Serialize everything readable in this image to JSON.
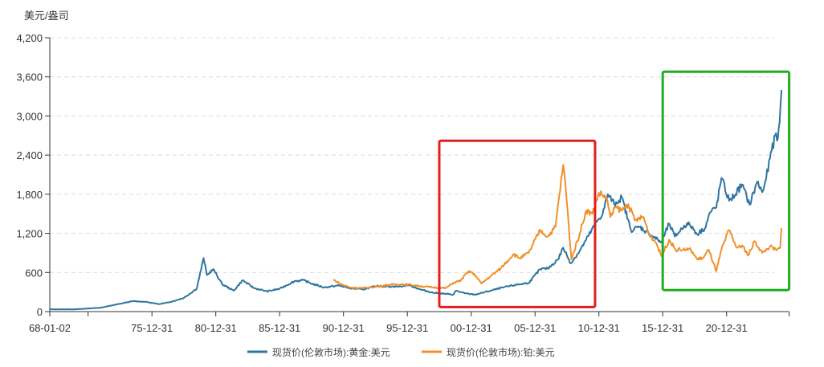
{
  "chart_data": {
    "type": "line",
    "title": "",
    "ylabel": "美元/盎司",
    "xlabel": "",
    "ylim": [
      0,
      4200
    ],
    "yticks": [
      0,
      600,
      1200,
      1800,
      2400,
      3000,
      3600,
      4200
    ],
    "ytick_labels": [
      "0",
      "600",
      "1,200",
      "1,800",
      "2,400",
      "3,000",
      "3,600",
      "4,200"
    ],
    "xlim_years": [
      1968.0,
      2025.9
    ],
    "xticks": [
      {
        "year": 1968.0,
        "label": "68-01-02"
      },
      {
        "year": 1971.0,
        "label": ""
      },
      {
        "year": 1976.0,
        "label": "75-12-31"
      },
      {
        "year": 1981.0,
        "label": "80-12-31"
      },
      {
        "year": 1986.0,
        "label": "85-12-31"
      },
      {
        "year": 1991.0,
        "label": "90-12-31"
      },
      {
        "year": 1996.0,
        "label": "95-12-31"
      },
      {
        "year": 2001.0,
        "label": "00-12-31"
      },
      {
        "year": 2006.0,
        "label": "05-12-31"
      },
      {
        "year": 2011.0,
        "label": "10-12-31"
      },
      {
        "year": 2016.0,
        "label": "15-12-31"
      },
      {
        "year": 2021.0,
        "label": "20-12-31"
      },
      {
        "year": 2025.9,
        "label": ""
      }
    ],
    "grid": "horizontal-dashed",
    "legend_position": "bottom-center",
    "series": [
      {
        "name": "现货价(伦敦市场):黄金:美元",
        "color": "#2e75a0",
        "points": [
          [
            1968,
            35
          ],
          [
            1970,
            35
          ],
          [
            1972,
            60
          ],
          [
            1973.5,
            120
          ],
          [
            1974.5,
            160
          ],
          [
            1975.5,
            150
          ],
          [
            1976.5,
            115
          ],
          [
            1977.5,
            150
          ],
          [
            1978.5,
            210
          ],
          [
            1979.5,
            350
          ],
          [
            1980.05,
            820
          ],
          [
            1980.3,
            560
          ],
          [
            1980.8,
            650
          ],
          [
            1981.5,
            420
          ],
          [
            1982.4,
            320
          ],
          [
            1983.1,
            480
          ],
          [
            1984,
            360
          ],
          [
            1985,
            310
          ],
          [
            1986,
            350
          ],
          [
            1987.2,
            470
          ],
          [
            1987.9,
            480
          ],
          [
            1988.5,
            430
          ],
          [
            1989.5,
            370
          ],
          [
            1990.6,
            400
          ],
          [
            1991.5,
            360
          ],
          [
            1992.5,
            340
          ],
          [
            1993.6,
            390
          ],
          [
            1994.5,
            385
          ],
          [
            1995.5,
            385
          ],
          [
            1996.1,
            410
          ],
          [
            1997,
            340
          ],
          [
            1998,
            290
          ],
          [
            1999.6,
            260
          ],
          [
            1999.8,
            320
          ],
          [
            2000.5,
            280
          ],
          [
            2001.3,
            260
          ],
          [
            2002.5,
            320
          ],
          [
            2003.5,
            370
          ],
          [
            2004.5,
            410
          ],
          [
            2005.5,
            440
          ],
          [
            2006.4,
            650
          ],
          [
            2007,
            660
          ],
          [
            2007.8,
            800
          ],
          [
            2008.2,
            980
          ],
          [
            2008.8,
            740
          ],
          [
            2009.5,
            930
          ],
          [
            2010,
            1100
          ],
          [
            2010.9,
            1400
          ],
          [
            2011.3,
            1500
          ],
          [
            2011.7,
            1800
          ],
          [
            2012.2,
            1650
          ],
          [
            2012.8,
            1750
          ],
          [
            2013.5,
            1250
          ],
          [
            2014.2,
            1300
          ],
          [
            2014.9,
            1200
          ],
          [
            2015.9,
            1060
          ],
          [
            2016.5,
            1350
          ],
          [
            2016.95,
            1150
          ],
          [
            2017.7,
            1320
          ],
          [
            2018.1,
            1340
          ],
          [
            2018.7,
            1190
          ],
          [
            2019.3,
            1280
          ],
          [
            2019.7,
            1520
          ],
          [
            2020.2,
            1600
          ],
          [
            2020.6,
            2050
          ],
          [
            2021.2,
            1700
          ],
          [
            2021.7,
            1800
          ],
          [
            2022.2,
            1950
          ],
          [
            2022.8,
            1640
          ],
          [
            2023.4,
            1990
          ],
          [
            2023.8,
            1830
          ],
          [
            2024.1,
            2040
          ],
          [
            2024.4,
            2350
          ],
          [
            2024.8,
            2700
          ],
          [
            2024.95,
            2620
          ],
          [
            2025.15,
            2900
          ],
          [
            2025.3,
            3400
          ]
        ]
      },
      {
        "name": "现货价(伦敦市场):铂:美元",
        "color": "#f0902a",
        "points": [
          [
            1990.2,
            490
          ],
          [
            1990.8,
            420
          ],
          [
            1991.5,
            370
          ],
          [
            1992.5,
            360
          ],
          [
            1993.5,
            380
          ],
          [
            1994.5,
            410
          ],
          [
            1995.5,
            420
          ],
          [
            1996.3,
            410
          ],
          [
            1997,
            390
          ],
          [
            1998,
            370
          ],
          [
            1999,
            360
          ],
          [
            1999.6,
            440
          ],
          [
            2000.2,
            480
          ],
          [
            2000.5,
            560
          ],
          [
            2000.9,
            620
          ],
          [
            2001.4,
            540
          ],
          [
            2001.8,
            430
          ],
          [
            2002.5,
            540
          ],
          [
            2003.3,
            660
          ],
          [
            2004.3,
            880
          ],
          [
            2004.8,
            820
          ],
          [
            2005.5,
            900
          ],
          [
            2006.4,
            1250
          ],
          [
            2007,
            1150
          ],
          [
            2007.6,
            1300
          ],
          [
            2008.2,
            2250
          ],
          [
            2008.4,
            1900
          ],
          [
            2008.85,
            800
          ],
          [
            2009.5,
            1200
          ],
          [
            2010,
            1550
          ],
          [
            2010.5,
            1500
          ],
          [
            2011,
            1820
          ],
          [
            2011.6,
            1750
          ],
          [
            2011.9,
            1450
          ],
          [
            2012.3,
            1600
          ],
          [
            2012.8,
            1550
          ],
          [
            2013.3,
            1650
          ],
          [
            2013.8,
            1400
          ],
          [
            2014.5,
            1450
          ],
          [
            2014.9,
            1200
          ],
          [
            2015.5,
            1050
          ],
          [
            2015.9,
            850
          ],
          [
            2016.5,
            1100
          ],
          [
            2017,
            950
          ],
          [
            2017.6,
            950
          ],
          [
            2018.2,
            950
          ],
          [
            2018.7,
            800
          ],
          [
            2019.2,
            830
          ],
          [
            2019.6,
            950
          ],
          [
            2020.2,
            620
          ],
          [
            2020.6,
            950
          ],
          [
            2021.2,
            1250
          ],
          [
            2021.8,
            980
          ],
          [
            2022.3,
            1000
          ],
          [
            2022.7,
            860
          ],
          [
            2023.2,
            1080
          ],
          [
            2023.8,
            900
          ],
          [
            2024.4,
            1000
          ],
          [
            2024.9,
            940
          ],
          [
            2025.2,
            980
          ],
          [
            2025.3,
            1280
          ]
        ]
      }
    ],
    "annotations": [
      {
        "type": "box",
        "color": "#e0201b",
        "x_years": [
          1998.5,
          2010.7
        ],
        "y_values": [
          70,
          2620
        ]
      },
      {
        "type": "box",
        "color": "#1fae1f",
        "x_years": [
          2016.0,
          2025.9
        ],
        "y_values": [
          330,
          3680
        ]
      }
    ]
  }
}
